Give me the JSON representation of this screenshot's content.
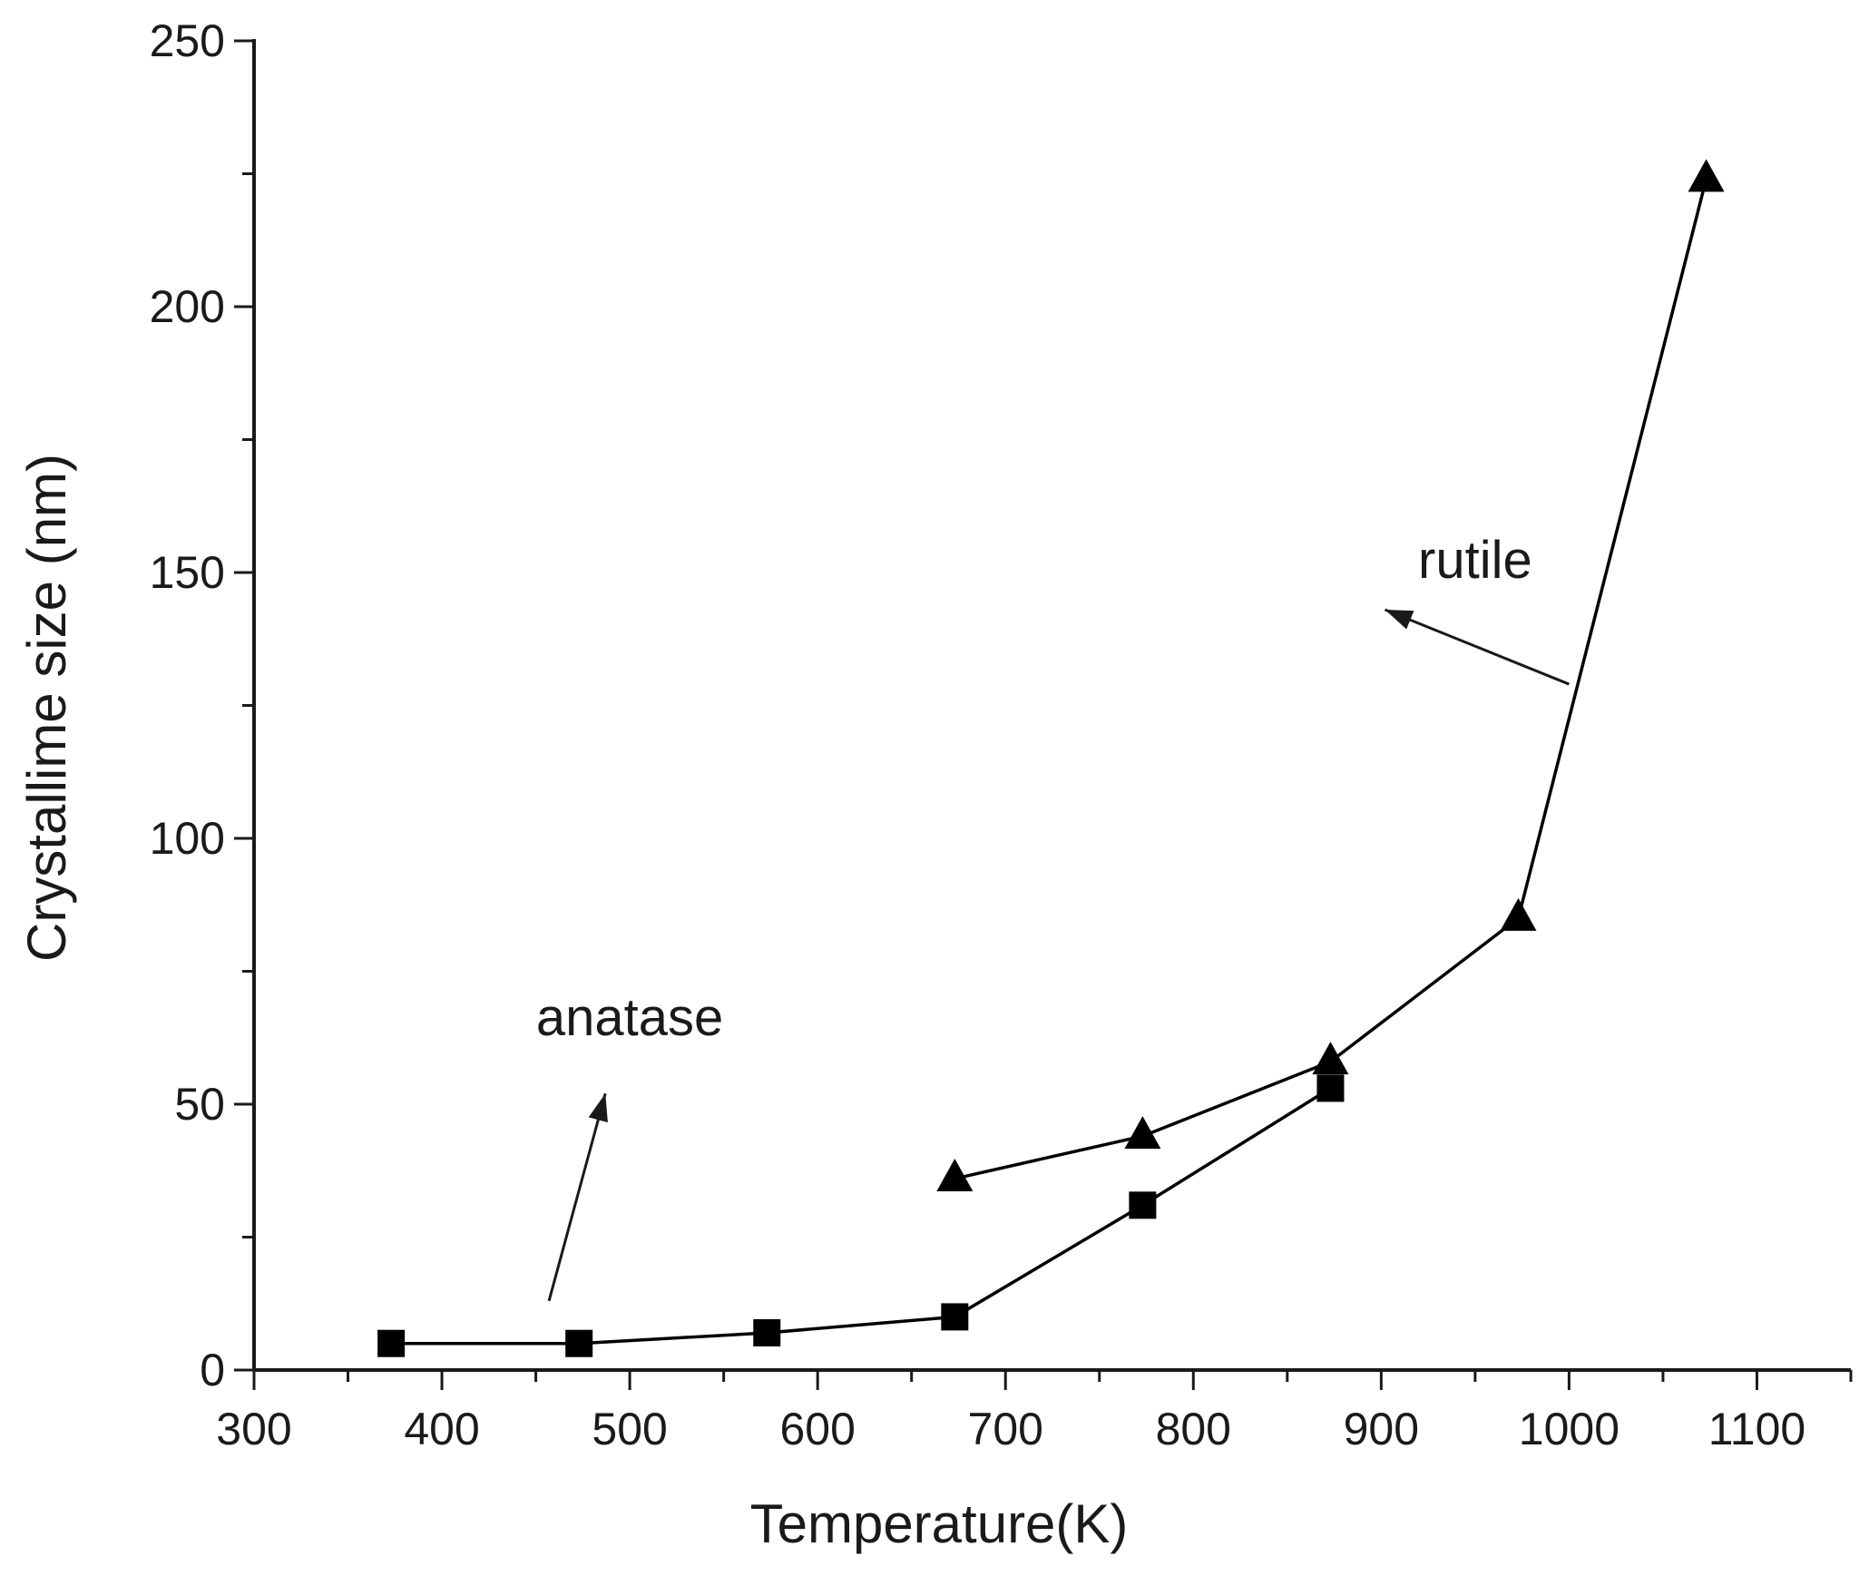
{
  "chart_data": {
    "type": "line",
    "title": "",
    "xlabel": "Temperature(K)",
    "ylabel": "Crystallime size (nm)",
    "xlim": [
      300,
      1150
    ],
    "ylim": [
      0,
      250
    ],
    "xticks": [
      300,
      400,
      500,
      600,
      700,
      800,
      900,
      1000,
      1100
    ],
    "yticks": [
      0,
      50,
      100,
      150,
      200,
      250
    ],
    "grid": false,
    "series": [
      {
        "marker": "square",
        "color": "#000000",
        "x": [
          373,
          473,
          573,
          673,
          773,
          873
        ],
        "y": [
          5,
          5,
          7,
          10,
          31,
          53
        ]
      },
      {
        "marker": "triangle",
        "color": "#000000",
        "x": [
          673,
          773,
          873,
          973,
          1073
        ],
        "y": [
          36,
          44,
          58,
          85,
          224
        ]
      }
    ],
    "annotations": [
      {
        "text": "anatase",
        "x": 500,
        "y": 63,
        "arrow_from": [
          457,
          13
        ],
        "arrow_to": [
          487,
          52
        ]
      },
      {
        "text": "rutile",
        "x": 950,
        "y": 149,
        "arrow_from": [
          1000,
          129
        ],
        "arrow_to": [
          902,
          143
        ]
      }
    ]
  }
}
